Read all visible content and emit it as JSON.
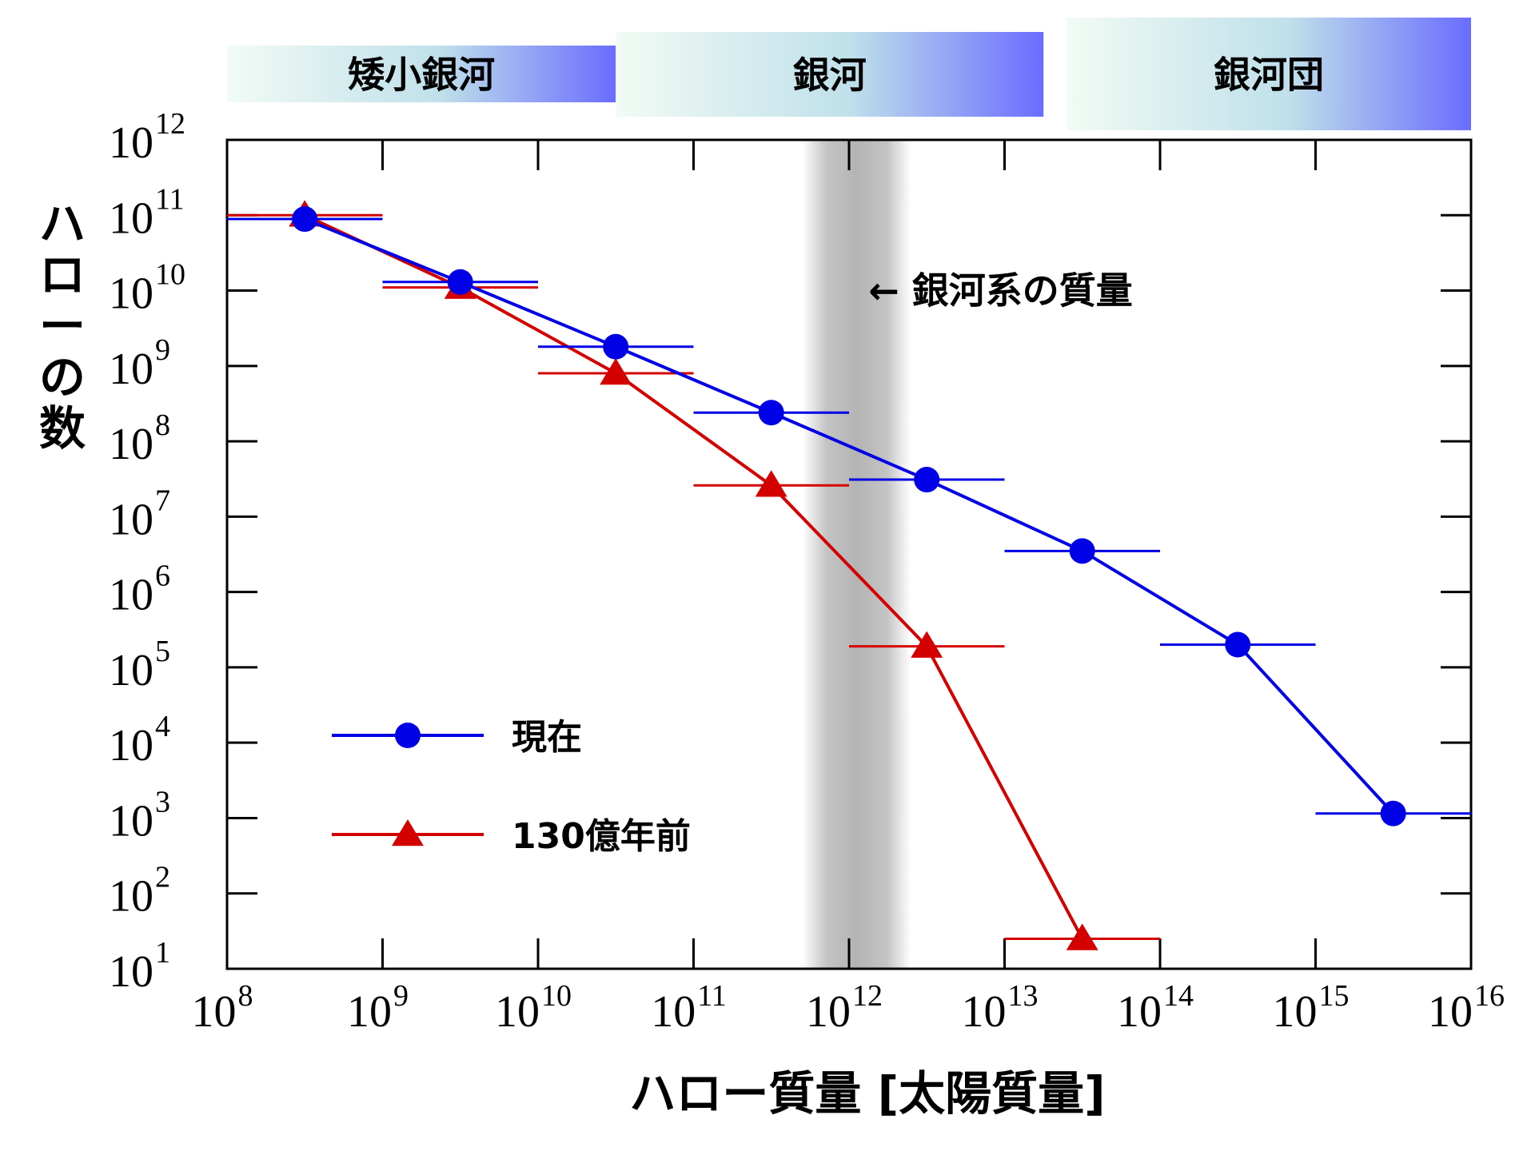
{
  "chart_data": {
    "type": "line",
    "title": "",
    "xlabel": "ハロー質量 [太陽質量]",
    "ylabel": "ハローの数",
    "xscale": "log",
    "yscale": "log",
    "xlim": [
      100000000.0,
      1e+16
    ],
    "ylim": [
      10,
      1000000000000.0
    ],
    "x_tick_exponents": [
      "8",
      "9",
      "10",
      "11",
      "12",
      "13",
      "14",
      "15",
      "16"
    ],
    "y_tick_exponents": [
      "1",
      "2",
      "3",
      "4",
      "5",
      "6",
      "7",
      "8",
      "9",
      "10",
      "11",
      "12"
    ],
    "tick_base": "10",
    "grid": false,
    "legend_position": "lower-left",
    "series": [
      {
        "name": "現在",
        "color": "#0000e6",
        "marker": "circle",
        "points": [
          {
            "x": 316000000.0,
            "y": 89000000000.0,
            "x_err": [
              100000000.0,
              1000000000.0
            ]
          },
          {
            "x": 3160000000.0,
            "y": 13000000000.0,
            "x_err": [
              1000000000.0,
              10000000000.0
            ]
          },
          {
            "x": 31600000000.0,
            "y": 1800000000.0,
            "x_err": [
              10000000000.0,
              100000000000.0
            ]
          },
          {
            "x": 316000000000.0,
            "y": 240000000.0,
            "x_err": [
              100000000000.0,
              1000000000000.0
            ]
          },
          {
            "x": 3160000000000.0,
            "y": 31000000.0,
            "x_err": [
              1000000000000.0,
              10000000000000.0
            ]
          },
          {
            "x": 31600000000000.0,
            "y": 3500000.0,
            "x_err": [
              10000000000000.0,
              100000000000000.0
            ]
          },
          {
            "x": 316000000000000.0,
            "y": 200000.0,
            "x_err": [
              100000000000000.0,
              1000000000000000.0
            ]
          },
          {
            "x": 3160000000000000.0,
            "y": 1150.0,
            "x_err": [
              1000000000000000.0,
              1e+16
            ]
          }
        ]
      },
      {
        "name": "130億年前",
        "color": "#d40000",
        "marker": "triangle",
        "points": [
          {
            "x": 316000000.0,
            "y": 100000000000.0,
            "x_err": [
              100000000.0,
              1000000000.0
            ]
          },
          {
            "x": 3160000000.0,
            "y": 11000000000.0,
            "x_err": [
              1000000000.0,
              10000000000.0
            ]
          },
          {
            "x": 31600000000.0,
            "y": 800000000.0,
            "x_err": [
              10000000000.0,
              100000000000.0
            ]
          },
          {
            "x": 316000000000.0,
            "y": 26000000.0,
            "x_err": [
              100000000000.0,
              1000000000000.0
            ]
          },
          {
            "x": 3160000000000.0,
            "y": 190000.0,
            "x_err": [
              1000000000000.0,
              10000000000000.0
            ]
          },
          {
            "x": 31600000000000.0,
            "y": 25,
            "x_err": [
              10000000000000.0,
              100000000000000.0
            ]
          }
        ]
      }
    ],
    "shaded_band": {
      "x": [
        500000000000.0,
        2500000000000.0
      ],
      "color": "#a0a0a0"
    },
    "annotation": {
      "text": "← 銀河系の質量",
      "x": 1500000000000.0,
      "y": 10000000000.0
    },
    "category_bands": [
      {
        "label": "矮小銀河",
        "x": [
          100000000.0,
          31600000000.0
        ]
      },
      {
        "label": "銀河",
        "x": [
          31600000000.0,
          17800000000000.0
        ]
      },
      {
        "label": "銀河団",
        "x": [
          25000000000000.0,
          1e+16
        ]
      }
    ]
  }
}
